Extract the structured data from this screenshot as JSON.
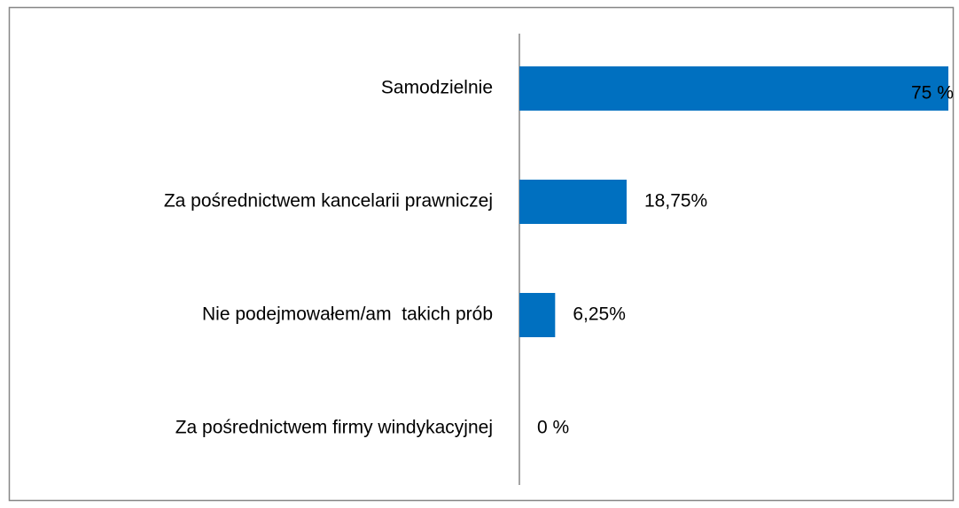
{
  "chart_data": {
    "type": "bar",
    "orientation": "horizontal",
    "categories": [
      "Samodzielnie",
      "Za pośrednictwem kancelarii prawniczej",
      "Nie podejmowałem/am  takich prób",
      "Za pośrednictwem firmy windykacyjnej"
    ],
    "values": [
      75,
      18.75,
      6.25,
      0
    ],
    "value_labels": [
      "75 %",
      "18,75%",
      "6,25%",
      "0 %"
    ],
    "color": "#0070c0",
    "xlim": [
      0,
      75
    ]
  }
}
